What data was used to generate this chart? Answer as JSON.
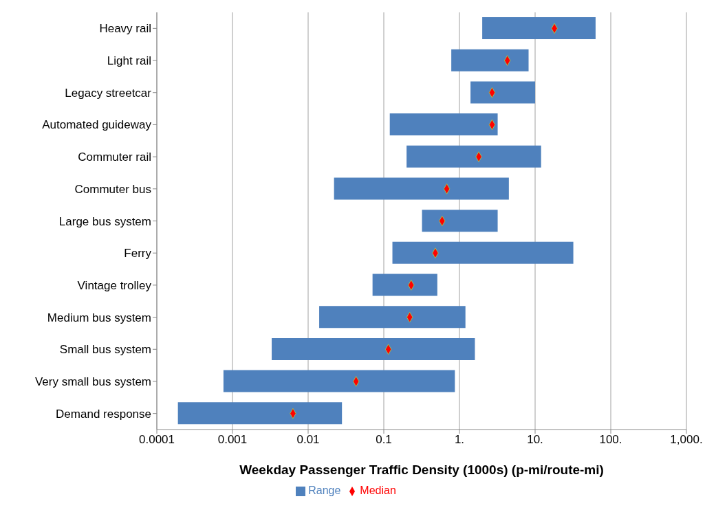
{
  "chart_data": {
    "type": "bar",
    "orientation": "horizontal",
    "log": "x",
    "xlabel": "Weekday Passenger Traffic Density (1000s) (p-mi/route-mi)",
    "categories": [
      "Heavy rail",
      "Light rail",
      "Legacy streetcar",
      "Automated guideway",
      "Commuter rail",
      "Commuter bus",
      "Large bus system",
      "Ferry",
      "Vintage trolley",
      "Medium bus system",
      "Small bus system",
      "Very small bus system",
      "Demand response"
    ],
    "series": [
      {
        "name": "Range",
        "color": "#4f81bd",
        "base": [
          2.0,
          0.78,
          1.4,
          0.12,
          0.2,
          0.022,
          0.32,
          0.13,
          0.071,
          0.014,
          0.0033,
          0.00076,
          0.00019
        ],
        "values": [
          61,
          7.42,
          8.6,
          3.08,
          11.8,
          4.478,
          2.88,
          31.87,
          0.439,
          1.186,
          1.5967,
          0.86924,
          0.02781
        ]
      },
      {
        "name": "Median",
        "type": "scatter",
        "color": "#ff0000",
        "marker": "diamond",
        "x": [
          "Heavy rail",
          "Light rail",
          "Legacy streetcar",
          "Automated guideway",
          "Commuter rail",
          "Commuter bus",
          "Large bus system",
          "Ferry",
          "Vintage trolley",
          "Medium bus system",
          "Small bus system",
          "Very small bus system",
          "Demand response"
        ],
        "values": [
          18,
          4.3,
          2.7,
          2.7,
          1.8,
          0.68,
          0.59,
          0.48,
          0.23,
          0.22,
          0.115,
          0.043,
          0.0063
        ]
      }
    ],
    "xlim": [
      0.0001,
      1000
    ],
    "xticks": [
      {
        "value": 0.0001,
        "label": "0.0001"
      },
      {
        "value": 0.001,
        "label": "0.001"
      },
      {
        "value": 0.01,
        "label": "0.01"
      },
      {
        "value": 0.1,
        "label": "0.1"
      },
      {
        "value": 1,
        "label": "1."
      },
      {
        "value": 10,
        "label": "10."
      },
      {
        "value": 100,
        "label": "100."
      },
      {
        "value": 1000,
        "label": "1,000."
      }
    ],
    "grid": "x",
    "legend": "bottom"
  }
}
